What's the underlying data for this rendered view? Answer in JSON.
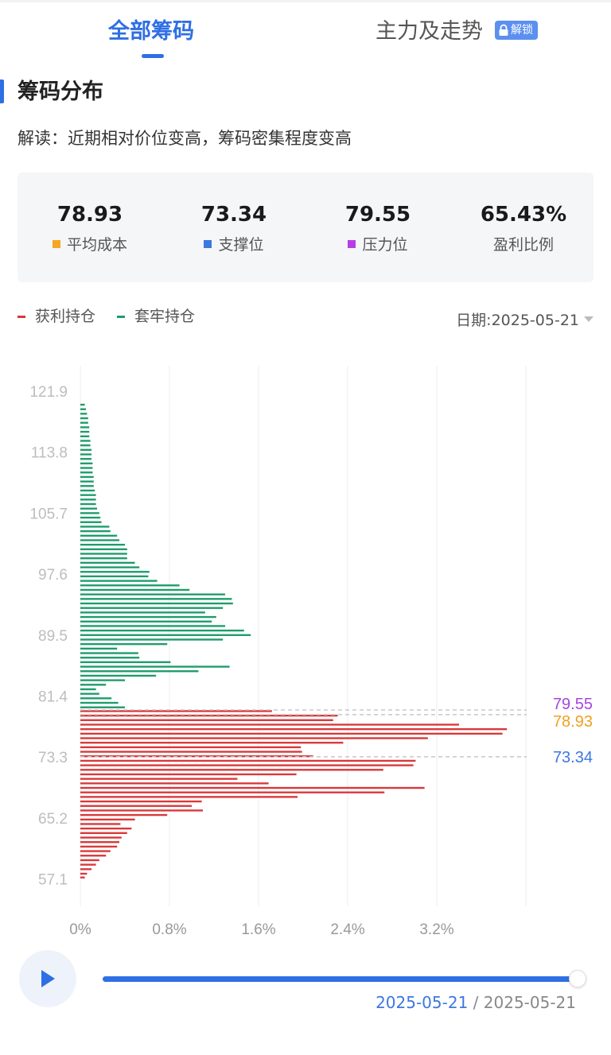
{
  "tabs": {
    "all_chips": "全部筹码",
    "main_trend": "主力及走势",
    "unlock_badge": "解锁"
  },
  "section": {
    "title": "筹码分布",
    "interpretation": "解读：近期相对价位变高，筹码密集程度变高"
  },
  "stats": [
    {
      "value": "78.93",
      "label": "平均成本",
      "color": "#f5a623"
    },
    {
      "value": "73.34",
      "label": "支撑位",
      "color": "#3b78e0"
    },
    {
      "value": "79.55",
      "label": "压力位",
      "color": "#b83de6"
    },
    {
      "value": "65.43%",
      "label": "盈利比例",
      "color": null
    }
  ],
  "legend": {
    "profit": "获利持仓",
    "trapped": "套牢持仓",
    "profit_color": "#d9383a",
    "trapped_color": "#1e9c6b"
  },
  "date_selector": {
    "text": "日期:2025-05-21"
  },
  "playback": {
    "current_date": "2025-05-21",
    "separator": "/",
    "end_date": "2025-05-21",
    "progress": 1.0
  },
  "chart_data": {
    "type": "bar",
    "orientation": "horizontal",
    "ylim": [
      56.0,
      125.0
    ],
    "xlim": [
      0,
      4.0
    ],
    "y_ticks": [
      "121.9",
      "113.8",
      "105.7",
      "97.6",
      "89.5",
      "81.4",
      "73.3",
      "65.2",
      "57.1"
    ],
    "x_ticks": [
      "0%",
      "0.8%",
      "1.6%",
      "2.4%",
      "3.2%"
    ],
    "grid": true,
    "markers": [
      {
        "price": 79.55,
        "label": "79.55",
        "color": "#a646e0"
      },
      {
        "price": 78.93,
        "label": "78.93",
        "color": "#f0a020"
      },
      {
        "price": 73.34,
        "label": "73.34",
        "color": "#3b78e0"
      }
    ],
    "series": [
      {
        "name": "获利持仓",
        "color": "#d9383a",
        "bar_thickness": 0.25,
        "points": [
          [
            57.3,
            0.04
          ],
          [
            57.8,
            0.06
          ],
          [
            58.4,
            0.1
          ],
          [
            59.0,
            0.14
          ],
          [
            59.6,
            0.17
          ],
          [
            60.2,
            0.23
          ],
          [
            60.8,
            0.27
          ],
          [
            61.4,
            0.33
          ],
          [
            62.0,
            0.35
          ],
          [
            62.6,
            0.37
          ],
          [
            63.2,
            0.42
          ],
          [
            63.8,
            0.46
          ],
          [
            64.4,
            0.36
          ],
          [
            65.0,
            0.49
          ],
          [
            65.6,
            0.78
          ],
          [
            66.2,
            1.1
          ],
          [
            66.8,
            1.0
          ],
          [
            67.4,
            1.09
          ],
          [
            68.0,
            1.95
          ],
          [
            68.6,
            2.73
          ],
          [
            69.2,
            3.09
          ],
          [
            69.8,
            1.69
          ],
          [
            70.4,
            1.41
          ],
          [
            71.0,
            1.94
          ],
          [
            71.6,
            2.72
          ],
          [
            72.2,
            2.99
          ],
          [
            72.8,
            3.01
          ],
          [
            73.4,
            2.09
          ],
          [
            74.0,
            1.99
          ],
          [
            74.6,
            1.98
          ],
          [
            75.2,
            2.36
          ],
          [
            75.8,
            3.12
          ],
          [
            76.4,
            3.79
          ],
          [
            77.0,
            3.83
          ],
          [
            77.6,
            3.4
          ],
          [
            78.2,
            2.27
          ],
          [
            78.8,
            2.31
          ],
          [
            79.4,
            1.72
          ]
        ]
      },
      {
        "name": "套牢持仓",
        "color": "#1e9c6b",
        "bar_thickness": 0.25,
        "points": [
          [
            79.9,
            0.4
          ],
          [
            80.5,
            0.34
          ],
          [
            81.1,
            0.28
          ],
          [
            81.7,
            0.17
          ],
          [
            82.3,
            0.14
          ],
          [
            82.9,
            0.23
          ],
          [
            83.5,
            0.4
          ],
          [
            84.1,
            0.68
          ],
          [
            84.7,
            1.06
          ],
          [
            85.3,
            1.34
          ],
          [
            85.9,
            0.81
          ],
          [
            86.5,
            0.53
          ],
          [
            87.1,
            0.52
          ],
          [
            87.7,
            0.33
          ],
          [
            88.3,
            0.78
          ],
          [
            88.9,
            1.28
          ],
          [
            89.5,
            1.53
          ],
          [
            90.1,
            1.47
          ],
          [
            90.7,
            1.3
          ],
          [
            91.3,
            1.18
          ],
          [
            91.9,
            1.22
          ],
          [
            92.5,
            1.12
          ],
          [
            93.1,
            1.28
          ],
          [
            93.7,
            1.37
          ],
          [
            94.3,
            1.36
          ],
          [
            94.9,
            1.3
          ],
          [
            95.5,
            0.98
          ],
          [
            96.1,
            0.89
          ],
          [
            96.7,
            0.69
          ],
          [
            97.3,
            0.61
          ],
          [
            97.9,
            0.62
          ],
          [
            98.5,
            0.53
          ],
          [
            99.1,
            0.49
          ],
          [
            99.7,
            0.42
          ],
          [
            100.3,
            0.42
          ],
          [
            100.9,
            0.42
          ],
          [
            101.5,
            0.4
          ],
          [
            102.1,
            0.35
          ],
          [
            102.7,
            0.33
          ],
          [
            103.3,
            0.27
          ],
          [
            103.9,
            0.26
          ],
          [
            104.5,
            0.19
          ],
          [
            105.1,
            0.18
          ],
          [
            105.7,
            0.17
          ],
          [
            106.3,
            0.15
          ],
          [
            106.9,
            0.14
          ],
          [
            107.5,
            0.14
          ],
          [
            108.1,
            0.14
          ],
          [
            108.7,
            0.13
          ],
          [
            109.3,
            0.12
          ],
          [
            109.9,
            0.12
          ],
          [
            110.5,
            0.12
          ],
          [
            111.1,
            0.11
          ],
          [
            111.7,
            0.11
          ],
          [
            112.3,
            0.11
          ],
          [
            112.9,
            0.1
          ],
          [
            113.5,
            0.1
          ],
          [
            114.1,
            0.1
          ],
          [
            114.7,
            0.09
          ],
          [
            115.3,
            0.09
          ],
          [
            115.9,
            0.08
          ],
          [
            116.5,
            0.08
          ],
          [
            117.1,
            0.08
          ],
          [
            117.7,
            0.07
          ],
          [
            118.3,
            0.07
          ],
          [
            118.9,
            0.06
          ],
          [
            119.5,
            0.05
          ],
          [
            120.1,
            0.04
          ]
        ]
      }
    ]
  }
}
